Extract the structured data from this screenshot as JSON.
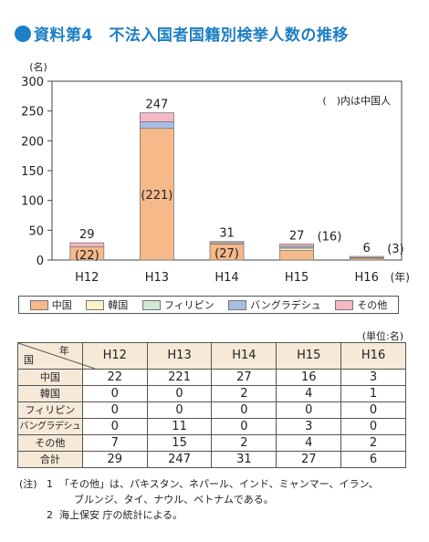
{
  "title": "資料第4　不法入国者国籍別検挙人数の推移",
  "colors": {
    "accent": "#1d7fc4",
    "china": "#f5b98a",
    "korea": "#fbf4c6",
    "philippines": "#cfe8d6",
    "bangladesh": "#a9bde0",
    "other": "#f4b8c6",
    "table_header_bg": "#f6e9d8"
  },
  "chart_data": {
    "type": "bar",
    "stacked": true,
    "ylabel": "(名)",
    "ylim": [
      0,
      300
    ],
    "yticks": [
      0,
      50,
      100,
      150,
      200,
      250,
      300
    ],
    "categories": [
      "H12",
      "H13",
      "H14",
      "H15",
      "H16"
    ],
    "xunit": "(年)",
    "series": [
      {
        "name": "中国",
        "values": [
          22,
          221,
          27,
          16,
          3
        ],
        "color": "#f5b98a"
      },
      {
        "name": "韓国",
        "values": [
          0,
          0,
          2,
          4,
          1
        ],
        "color": "#fbf4c6"
      },
      {
        "name": "フィリピン",
        "values": [
          0,
          0,
          0,
          0,
          0
        ],
        "color": "#cfe8d6"
      },
      {
        "name": "バングラデシュ",
        "values": [
          0,
          11,
          0,
          3,
          0
        ],
        "color": "#a9bde0"
      },
      {
        "name": "その他",
        "values": [
          7,
          15,
          2,
          4,
          2
        ],
        "color": "#f4b8c6"
      }
    ],
    "totals": [
      29,
      247,
      31,
      27,
      6
    ],
    "china_labels": [
      "(22)",
      "(221)",
      "(27)",
      "(16)",
      "(3)"
    ],
    "annotation": "(　)内は中国人"
  },
  "legend": [
    "中国",
    "韓国",
    "フィリピン",
    "バングラデシュ",
    "その他"
  ],
  "table": {
    "unit": "(単位:名)",
    "corner_top": "年",
    "corner_bottom": "国",
    "columns": [
      "H12",
      "H13",
      "H14",
      "H15",
      "H16"
    ],
    "rows": [
      {
        "label": "中国",
        "values": [
          "22",
          "221",
          "27",
          "16",
          "3"
        ]
      },
      {
        "label": "韓国",
        "values": [
          "0",
          "0",
          "2",
          "4",
          "1"
        ]
      },
      {
        "label": "フィリピン",
        "values": [
          "0",
          "0",
          "0",
          "0",
          "0"
        ]
      },
      {
        "label": "バングラデシュ",
        "values": [
          "0",
          "11",
          "0",
          "3",
          "0"
        ]
      },
      {
        "label": "その他",
        "values": [
          "7",
          "15",
          "2",
          "4",
          "2"
        ]
      },
      {
        "label": "合計",
        "values": [
          "29",
          "247",
          "31",
          "27",
          "6"
        ]
      }
    ]
  },
  "notes": {
    "mark": "(注)",
    "items": [
      {
        "num": "1",
        "text": "「その他」は、パキスタン、ネパール、インド、ミャンマー、イラン、"
      },
      {
        "num": "",
        "text": "ブルンジ、タイ、ナウル、ベトナムである。"
      },
      {
        "num": "2",
        "text": "海上保安 庁の統計による。"
      }
    ]
  }
}
